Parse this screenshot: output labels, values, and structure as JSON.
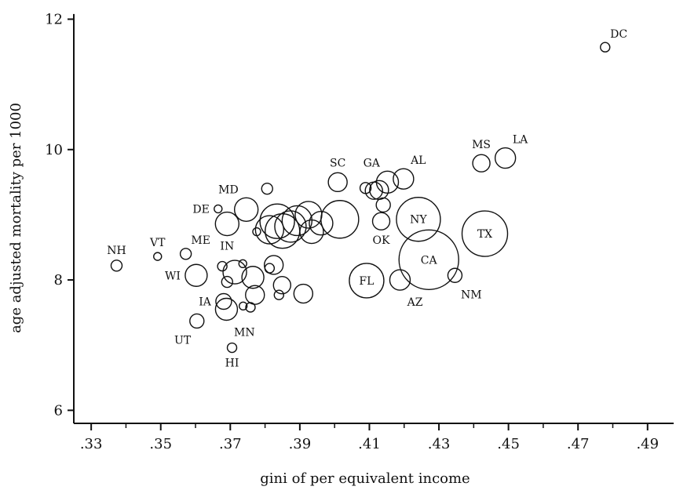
{
  "chart_data": {
    "type": "scatter",
    "title": "",
    "xlabel": "gini of per equivalent income",
    "ylabel": "age adjusted mortality per 1000",
    "xlim": [
      0.325,
      0.4975
    ],
    "ylim": [
      5.8,
      12.15
    ],
    "xticks": [
      ".33",
      ".35",
      ".37",
      ".39",
      ".41",
      ".43",
      ".45",
      ".47",
      ".49"
    ],
    "xtick_values": [
      0.33,
      0.35,
      0.37,
      0.39,
      0.41,
      0.43,
      0.45,
      0.47,
      0.49
    ],
    "yticks": [
      "6",
      "8",
      "10",
      "12"
    ],
    "ytick_values": [
      6,
      8,
      10,
      12
    ],
    "grid": false,
    "points": [
      {
        "x": 0.4778,
        "y": 11.57,
        "size": 6,
        "label": "DC",
        "label_pos": "above-right"
      },
      {
        "x": 0.4491,
        "y": 9.87,
        "size": 13,
        "label": "LA",
        "label_pos": "above-right"
      },
      {
        "x": 0.4422,
        "y": 9.79,
        "size": 11,
        "label": "MS",
        "label_pos": "above"
      },
      {
        "x": 0.4432,
        "y": 8.71,
        "size": 29,
        "label": "TX",
        "label_pos": "center"
      },
      {
        "x": 0.4346,
        "y": 8.07,
        "size": 9,
        "label": "NM",
        "label_pos": "below-right"
      },
      {
        "x": 0.4271,
        "y": 8.31,
        "size": 38,
        "label": "CA",
        "label_pos": "center"
      },
      {
        "x": 0.4241,
        "y": 8.93,
        "size": 28,
        "label": "NY",
        "label_pos": "center"
      },
      {
        "x": 0.4198,
        "y": 9.55,
        "size": 13,
        "label": "AL",
        "label_pos": "above-right"
      },
      {
        "x": 0.4188,
        "y": 8.0,
        "size": 13,
        "label": "AZ",
        "label_pos": "below-right"
      },
      {
        "x": 0.4152,
        "y": 9.5,
        "size": 14,
        "label": "GA",
        "label_pos": "above-left"
      },
      {
        "x": 0.4134,
        "y": 8.9,
        "size": 11,
        "label": "OK",
        "label_pos": "below"
      },
      {
        "x": 0.4092,
        "y": 7.99,
        "size": 22,
        "label": "FL",
        "label_pos": "center"
      },
      {
        "x": 0.4009,
        "y": 9.5,
        "size": 12,
        "label": "SC",
        "label_pos": "above"
      },
      {
        "x": 0.3806,
        "y": 9.4,
        "size": 7,
        "label": "",
        "label_pos": ""
      },
      {
        "x": 0.3746,
        "y": 9.08,
        "size": 15,
        "label": "MD",
        "label_pos": "above-left"
      },
      {
        "x": 0.3665,
        "y": 9.09,
        "size": 5,
        "label": "DE",
        "label_pos": "left"
      },
      {
        "x": 0.3691,
        "y": 8.86,
        "size": 15,
        "label": "IN",
        "label_pos": "below"
      },
      {
        "x": 0.3572,
        "y": 8.4,
        "size": 7,
        "label": "ME",
        "label_pos": "above-right"
      },
      {
        "x": 0.3491,
        "y": 8.36,
        "size": 5,
        "label": "VT",
        "label_pos": "above"
      },
      {
        "x": 0.3373,
        "y": 8.22,
        "size": 7,
        "label": "NH",
        "label_pos": "above"
      },
      {
        "x": 0.3602,
        "y": 8.07,
        "size": 14,
        "label": "WI",
        "label_pos": "left"
      },
      {
        "x": 0.3681,
        "y": 7.67,
        "size": 10,
        "label": "IA",
        "label_pos": "left"
      },
      {
        "x": 0.3604,
        "y": 7.37,
        "size": 9,
        "label": "UT",
        "label_pos": "below-left"
      },
      {
        "x": 0.3689,
        "y": 7.55,
        "size": 14,
        "label": "MN",
        "label_pos": "below-right"
      },
      {
        "x": 0.3705,
        "y": 6.96,
        "size": 6,
        "label": "HI",
        "label_pos": "below"
      },
      {
        "x": 0.3677,
        "y": 8.21,
        "size": 6,
        "label": "",
        "label_pos": ""
      },
      {
        "x": 0.3691,
        "y": 7.97,
        "size": 7,
        "label": "",
        "label_pos": ""
      },
      {
        "x": 0.3713,
        "y": 8.12,
        "size": 15,
        "label": "",
        "label_pos": ""
      },
      {
        "x": 0.3736,
        "y": 8.25,
        "size": 5,
        "label": "",
        "label_pos": ""
      },
      {
        "x": 0.3737,
        "y": 7.6,
        "size": 5,
        "label": "",
        "label_pos": ""
      },
      {
        "x": 0.3758,
        "y": 7.58,
        "size": 6,
        "label": "",
        "label_pos": ""
      },
      {
        "x": 0.3765,
        "y": 8.04,
        "size": 14,
        "label": "",
        "label_pos": ""
      },
      {
        "x": 0.3771,
        "y": 7.77,
        "size": 12,
        "label": "",
        "label_pos": ""
      },
      {
        "x": 0.3776,
        "y": 8.74,
        "size": 5,
        "label": "",
        "label_pos": ""
      },
      {
        "x": 0.3813,
        "y": 8.18,
        "size": 6,
        "label": "",
        "label_pos": ""
      },
      {
        "x": 0.3825,
        "y": 8.23,
        "size": 12,
        "label": "",
        "label_pos": ""
      },
      {
        "x": 0.384,
        "y": 7.77,
        "size": 6,
        "label": "",
        "label_pos": ""
      },
      {
        "x": 0.3849,
        "y": 7.92,
        "size": 11,
        "label": "",
        "label_pos": ""
      },
      {
        "x": 0.391,
        "y": 7.79,
        "size": 12,
        "label": "",
        "label_pos": ""
      },
      {
        "x": 0.3813,
        "y": 8.77,
        "size": 18,
        "label": "",
        "label_pos": ""
      },
      {
        "x": 0.3835,
        "y": 8.9,
        "size": 22,
        "label": "",
        "label_pos": ""
      },
      {
        "x": 0.385,
        "y": 8.75,
        "size": 22,
        "label": "",
        "label_pos": ""
      },
      {
        "x": 0.3873,
        "y": 8.82,
        "size": 20,
        "label": "",
        "label_pos": ""
      },
      {
        "x": 0.3892,
        "y": 8.91,
        "size": 19,
        "label": "",
        "label_pos": ""
      },
      {
        "x": 0.3925,
        "y": 9.0,
        "size": 17,
        "label": "",
        "label_pos": ""
      },
      {
        "x": 0.3934,
        "y": 8.74,
        "size": 15,
        "label": "",
        "label_pos": ""
      },
      {
        "x": 0.3961,
        "y": 8.87,
        "size": 15,
        "label": "",
        "label_pos": ""
      },
      {
        "x": 0.4015,
        "y": 8.93,
        "size": 24,
        "label": "",
        "label_pos": ""
      },
      {
        "x": 0.4089,
        "y": 9.41,
        "size": 7,
        "label": "",
        "label_pos": ""
      },
      {
        "x": 0.4113,
        "y": 9.37,
        "size": 11,
        "label": "",
        "label_pos": ""
      },
      {
        "x": 0.4128,
        "y": 9.38,
        "size": 12,
        "label": "",
        "label_pos": ""
      },
      {
        "x": 0.414,
        "y": 9.15,
        "size": 9,
        "label": "",
        "label_pos": ""
      }
    ]
  }
}
